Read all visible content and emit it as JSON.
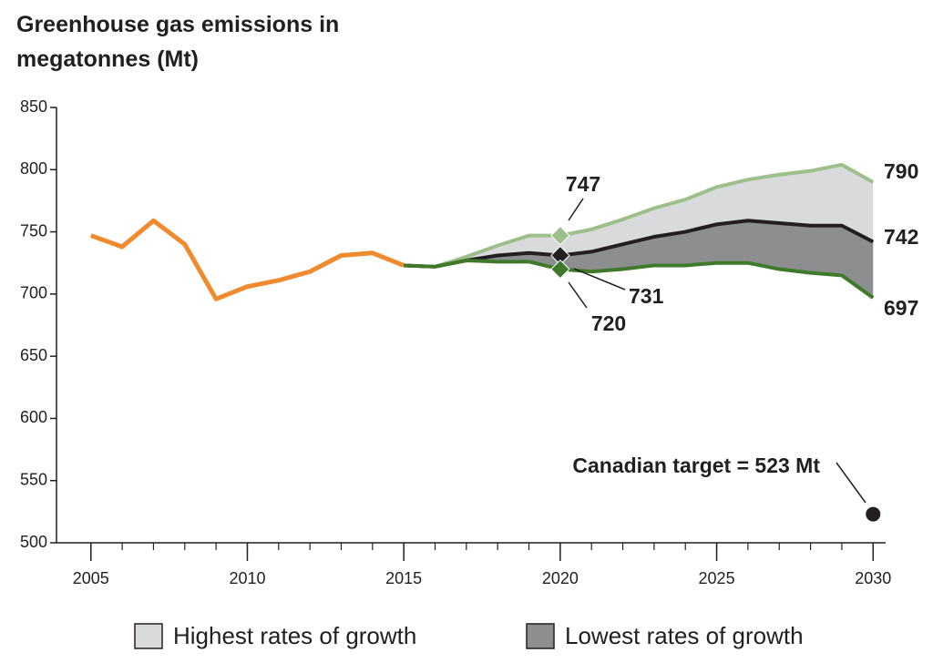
{
  "chart_data": {
    "type": "line",
    "title": "Greenhouse gas emissions in megatonnes (Mt)",
    "x": [
      2005,
      2006,
      2007,
      2008,
      2009,
      2010,
      2011,
      2012,
      2013,
      2014,
      2015,
      2016,
      2017,
      2018,
      2019,
      2020,
      2021,
      2022,
      2023,
      2024,
      2025,
      2026,
      2027,
      2028,
      2029,
      2030
    ],
    "series": [
      {
        "color": "#f08a2e",
        "values": [
          747,
          738,
          759,
          740,
          696,
          706,
          711,
          718,
          731,
          733,
          723,
          null,
          null,
          null,
          null,
          null,
          null,
          null,
          null,
          null,
          null,
          null,
          null,
          null,
          null,
          null
        ]
      },
      {
        "color": "#9dbf8a",
        "values": [
          null,
          null,
          null,
          null,
          null,
          null,
          null,
          null,
          null,
          null,
          723,
          722,
          730,
          739,
          747,
          747,
          752,
          760,
          769,
          776,
          786,
          792,
          796,
          799,
          804,
          790
        ]
      },
      {
        "color": "#231f20",
        "values": [
          null,
          null,
          null,
          null,
          null,
          null,
          null,
          null,
          null,
          null,
          723,
          722,
          727,
          731,
          733,
          731,
          734,
          740,
          746,
          750,
          756,
          759,
          757,
          755,
          755,
          742
        ]
      },
      {
        "color": "#3f7a2a",
        "values": [
          null,
          null,
          null,
          null,
          null,
          null,
          null,
          null,
          null,
          null,
          723,
          722,
          727,
          726,
          726,
          720,
          718,
          720,
          723,
          723,
          725,
          725,
          720,
          717,
          715,
          697
        ]
      }
    ],
    "legend": [
      {
        "name": "Highest rates of growth",
        "color": "#d9dadb"
      },
      {
        "name": "Lowest rates of growth",
        "color": "#8c8e90"
      }
    ],
    "target": {
      "label": "Canadian target = 523 Mt",
      "x": 2030,
      "value": 523,
      "color": "#231f20"
    },
    "xlim": [
      2003.9,
      2030.4
    ],
    "xticks": [
      2005,
      2010,
      2015,
      2020,
      2025,
      2030
    ],
    "ylim": [
      500,
      850
    ],
    "yticks": [
      500,
      550,
      600,
      650,
      700,
      750,
      800,
      850
    ]
  }
}
